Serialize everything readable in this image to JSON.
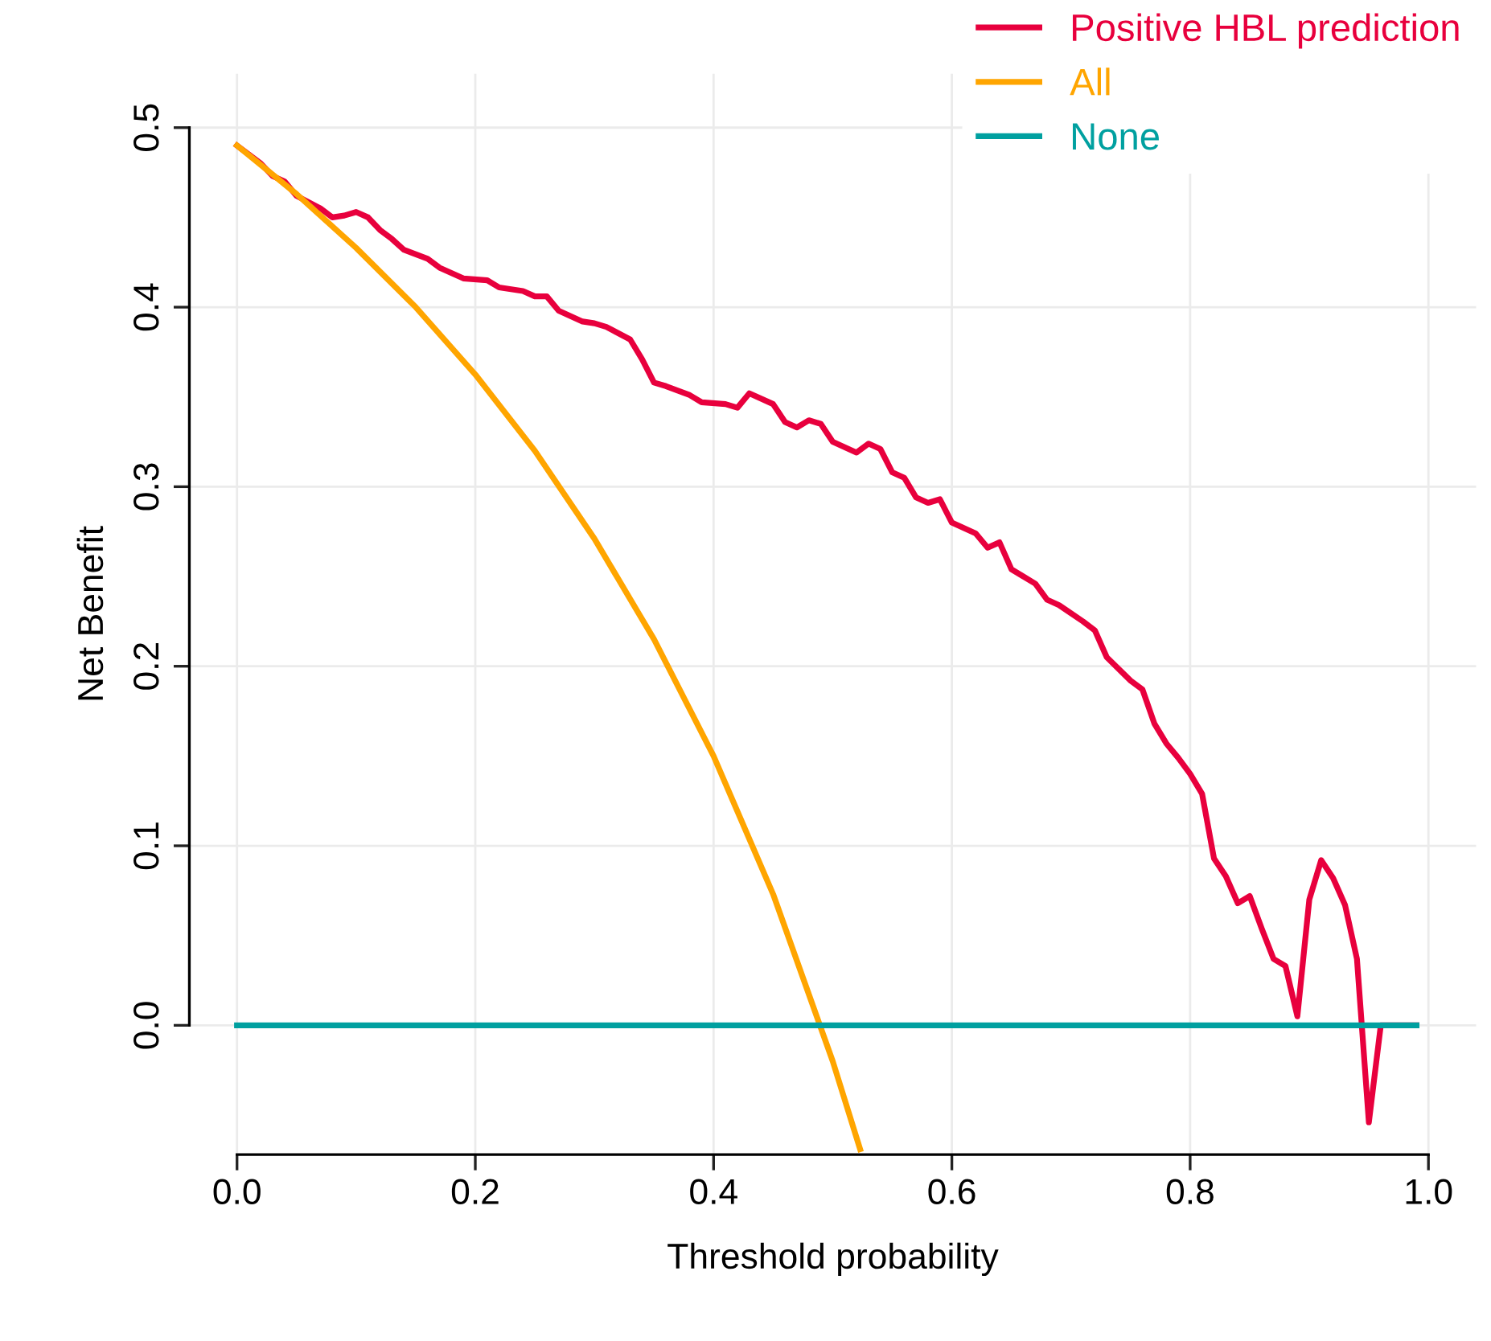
{
  "chart_data": {
    "type": "line",
    "xlabel": "Threshold probability",
    "ylabel": "Net Benefit",
    "xlim": [
      -0.04,
      1.04
    ],
    "ylim": [
      -0.072,
      0.53
    ],
    "xticks": [
      {
        "value": 0,
        "label": "0.0"
      },
      {
        "value": 0.2,
        "label": "0.2"
      },
      {
        "value": 0.4,
        "label": "0.4"
      },
      {
        "value": 0.6,
        "label": "0.6"
      },
      {
        "value": 0.8,
        "label": "0.8"
      },
      {
        "value": 1,
        "label": "1.0"
      }
    ],
    "yticks": [
      {
        "value": 0,
        "label": "0.0"
      },
      {
        "value": 0.1,
        "label": "0.1"
      },
      {
        "value": 0.2,
        "label": "0.2"
      },
      {
        "value": 0.3,
        "label": "0.3"
      },
      {
        "value": 0.4,
        "label": "0.4"
      },
      {
        "value": 0.5,
        "label": "0.5"
      }
    ],
    "grid": true,
    "legend": "top right",
    "line_style": "solid",
    "series": [
      {
        "name": "Positive HBL prediction",
        "color": "#e8003d",
        "x": [
          0,
          0.02,
          0.03,
          0.04,
          0.05,
          0.07,
          0.08,
          0.09,
          0.1,
          0.11,
          0.12,
          0.13,
          0.14,
          0.16,
          0.17,
          0.19,
          0.21,
          0.22,
          0.24,
          0.25,
          0.26,
          0.27,
          0.29,
          0.3,
          0.31,
          0.33,
          0.34,
          0.35,
          0.36,
          0.38,
          0.39,
          0.41,
          0.42,
          0.43,
          0.45,
          0.46,
          0.47,
          0.48,
          0.49,
          0.5,
          0.52,
          0.53,
          0.54,
          0.55,
          0.56,
          0.57,
          0.58,
          0.59,
          0.6,
          0.62,
          0.63,
          0.64,
          0.65,
          0.67,
          0.68,
          0.69,
          0.71,
          0.72,
          0.73,
          0.75,
          0.76,
          0.77,
          0.78,
          0.79,
          0.8,
          0.81,
          0.82,
          0.83,
          0.84,
          0.85,
          0.86,
          0.87,
          0.88,
          0.89,
          0.9,
          0.91,
          0.92,
          0.93,
          0.94,
          0.95,
          0.96,
          0.99
        ],
        "values": [
          0.49,
          0.48,
          0.473,
          0.47,
          0.462,
          0.455,
          0.45,
          0.451,
          0.453,
          0.45,
          0.443,
          0.438,
          0.432,
          0.427,
          0.422,
          0.416,
          0.415,
          0.411,
          0.409,
          0.406,
          0.406,
          0.398,
          0.392,
          0.391,
          0.389,
          0.382,
          0.371,
          0.358,
          0.356,
          0.351,
          0.347,
          0.346,
          0.344,
          0.352,
          0.346,
          0.336,
          0.333,
          0.337,
          0.335,
          0.325,
          0.319,
          0.324,
          0.321,
          0.308,
          0.305,
          0.294,
          0.291,
          0.293,
          0.28,
          0.274,
          0.266,
          0.269,
          0.254,
          0.246,
          0.237,
          0.234,
          0.225,
          0.22,
          0.205,
          0.192,
          0.187,
          0.168,
          0.157,
          0.149,
          0.14,
          0.129,
          0.093,
          0.083,
          0.068,
          0.072,
          0.054,
          0.037,
          0.033,
          0.005,
          0.07,
          0.092,
          0.082,
          0.067,
          0.037,
          -0.054,
          0,
          0
        ]
      },
      {
        "name": "All",
        "color": "#ffa500",
        "x": [
          0,
          0.05,
          0.1,
          0.15,
          0.2,
          0.25,
          0.3,
          0.35,
          0.4,
          0.45,
          0.5,
          0.523
        ],
        "values": [
          0.49,
          0.463,
          0.433,
          0.4,
          0.3625,
          0.32,
          0.271,
          0.215,
          0.15,
          0.073,
          -0.02,
          -0.069
        ]
      },
      {
        "name": "None",
        "color": "#00a0a0",
        "x": [
          0,
          0.99
        ],
        "values": [
          0,
          0
        ]
      }
    ]
  }
}
